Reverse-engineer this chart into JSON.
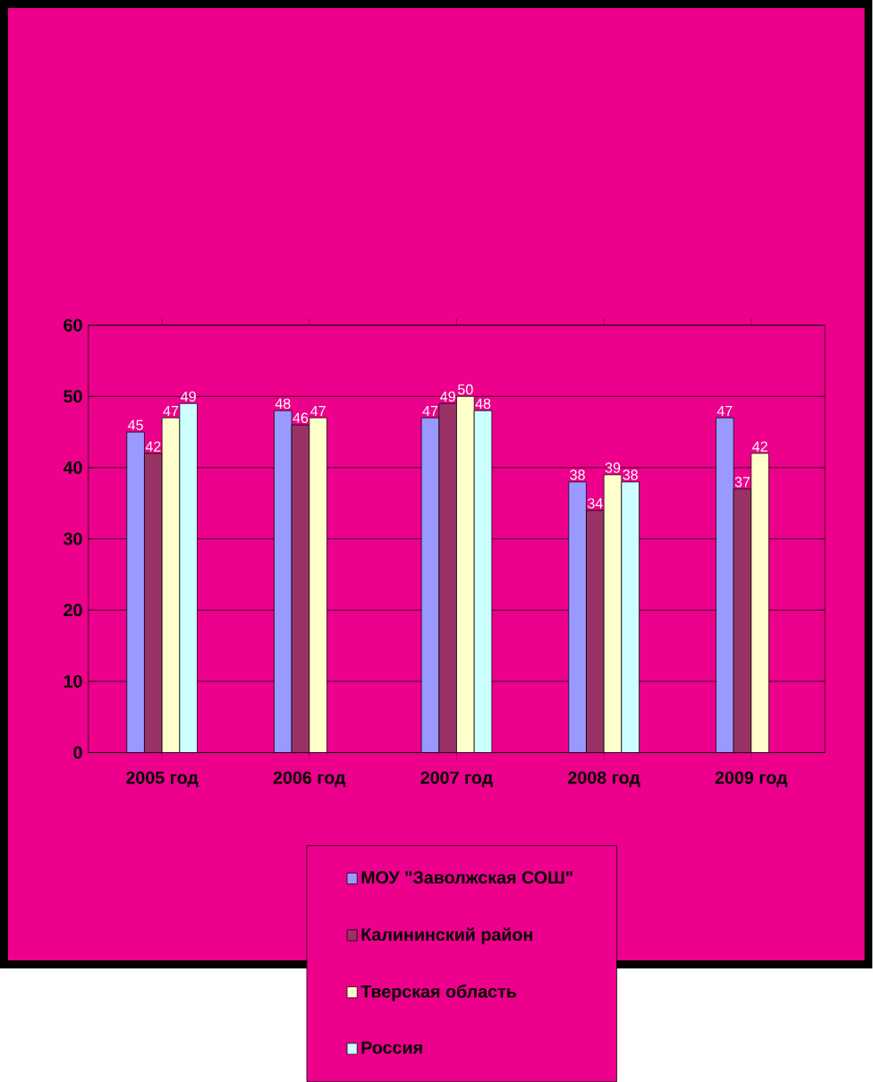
{
  "chart_data": {
    "type": "bar",
    "categories": [
      "2005 год",
      "2006 год",
      "2007 год",
      "2008 год",
      "2009 год"
    ],
    "series": [
      {
        "name": "МОУ \"Заволжская СОШ\"",
        "color": "#9999ff",
        "values": [
          45,
          48,
          47,
          38,
          47
        ]
      },
      {
        "name": "Калининский район",
        "color": "#993366",
        "values": [
          42,
          46,
          49,
          34,
          37
        ]
      },
      {
        "name": "Тверская область",
        "color": "#ffffcc",
        "values": [
          47,
          47,
          50,
          39,
          42
        ]
      },
      {
        "name": "Россия",
        "color": "#ccffff",
        "values": [
          49,
          null,
          48,
          38,
          null
        ]
      }
    ],
    "ylim": [
      0,
      60
    ],
    "yticks": [
      0,
      10,
      20,
      30,
      40,
      50,
      60
    ],
    "grid": "y",
    "legend": "bottom",
    "data_labels": true
  }
}
